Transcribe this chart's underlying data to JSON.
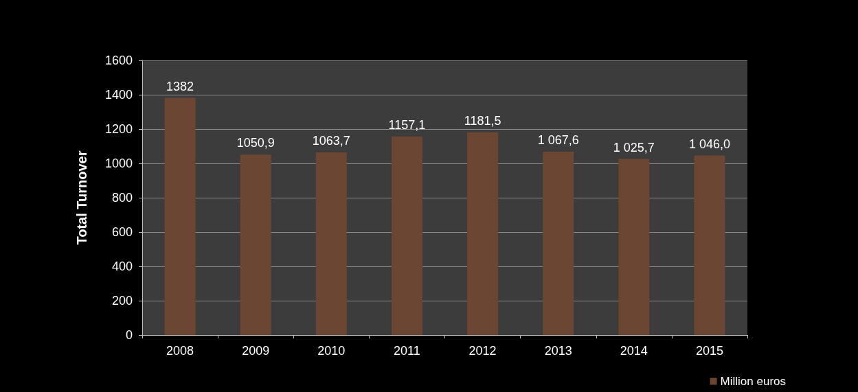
{
  "chart_data": {
    "type": "bar",
    "ylabel": "Total Turnover",
    "categories": [
      "2008",
      "2009",
      "2010",
      "2011",
      "2012",
      "2013",
      "2014",
      "2015"
    ],
    "series": [
      {
        "name": "Million euros",
        "color": "#6b4632",
        "values": [
          1382,
          1050.9,
          1063.7,
          1157.1,
          1181.5,
          1067.6,
          1025.7,
          1046.0
        ],
        "value_labels": [
          "1382",
          "1050,9",
          "1063,7",
          "1157,1",
          "1181,5",
          "1 067,6",
          "1 025,7",
          "1 046,0"
        ]
      }
    ],
    "ylim": [
      0,
      1600
    ],
    "yticks": [
      0,
      200,
      400,
      600,
      800,
      1000,
      1200,
      1400,
      1600
    ],
    "grid": "y",
    "legend": "bottom right"
  }
}
